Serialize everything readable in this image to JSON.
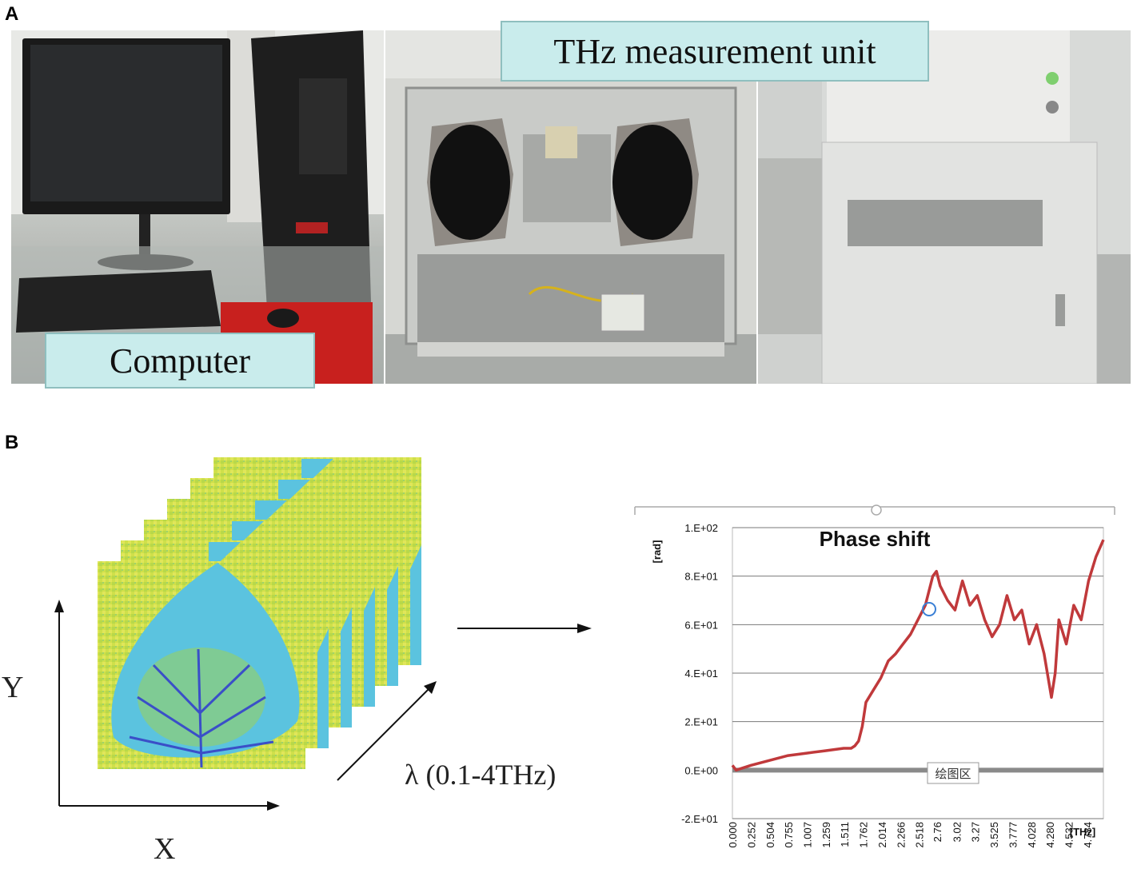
{
  "panels": {
    "a": "A",
    "b": "B"
  },
  "photo_labels": {
    "computer": "Computer",
    "thz_unit": "THz measurement unit"
  },
  "cube": {
    "x_label": "X",
    "y_label": "Y",
    "lambda_label": "λ (0.1-4THz)"
  },
  "chart_data": {
    "type": "line",
    "title": "Phase shift",
    "ylabel": "[rad]",
    "xlabel": "[THz]",
    "ylim": [
      -20,
      100
    ],
    "yticks": [
      "1.E+02",
      "8.E+01",
      "6.E+01",
      "4.E+01",
      "2.E+01",
      "0.E+00",
      "-2.E+01"
    ],
    "ytick_values": [
      100,
      80,
      60,
      40,
      20,
      0,
      -20
    ],
    "xticks": [
      "0.000",
      "0.252",
      "0.504",
      "0.755",
      "1.007",
      "1.259",
      "1.511",
      "1.762",
      "2.014",
      "2.266",
      "2.518",
      "2.76",
      "3.02",
      "3.27",
      "3.525",
      "3.777",
      "4.028",
      "4.280",
      "4.532",
      "4.784"
    ],
    "xtick_values": [
      0.0,
      0.252,
      0.504,
      0.755,
      1.007,
      1.259,
      1.511,
      1.762,
      2.014,
      2.266,
      2.518,
      2.76,
      3.02,
      3.27,
      3.525,
      3.777,
      4.028,
      4.28,
      4.532,
      4.784
    ],
    "xlim": [
      0,
      5.0
    ],
    "grid": true,
    "overlay_tag": "绘图区",
    "series": [
      {
        "color": "#c0393b",
        "x": [
          0.0,
          0.05,
          0.25,
          0.5,
          0.75,
          1.0,
          1.25,
          1.5,
          1.6,
          1.65,
          1.7,
          1.75,
          1.8,
          1.9,
          2.0,
          2.1,
          2.2,
          2.3,
          2.4,
          2.5,
          2.6,
          2.7,
          2.75,
          2.8,
          2.9,
          3.0,
          3.05,
          3.1,
          3.2,
          3.3,
          3.4,
          3.5,
          3.6,
          3.7,
          3.8,
          3.9,
          4.0,
          4.1,
          4.2,
          4.3,
          4.35,
          4.4,
          4.5,
          4.6,
          4.7,
          4.8,
          4.9,
          5.0
        ],
        "y": [
          2,
          0,
          2,
          4,
          6,
          7,
          8,
          9,
          9,
          10,
          12,
          18,
          28,
          33,
          38,
          45,
          48,
          52,
          56,
          62,
          68,
          80,
          82,
          76,
          70,
          66,
          72,
          78,
          68,
          72,
          62,
          55,
          60,
          72,
          62,
          66,
          52,
          60,
          48,
          30,
          40,
          62,
          52,
          68,
          62,
          78,
          88,
          95
        ]
      }
    ]
  }
}
